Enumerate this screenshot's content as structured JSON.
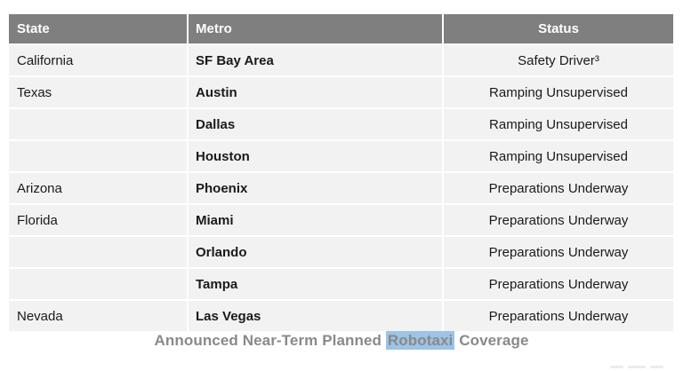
{
  "chart_data": {
    "type": "table",
    "title": "Announced Near-Term Planned Robotaxi Coverage",
    "columns": [
      "State",
      "Metro",
      "Status"
    ],
    "rows": [
      [
        "California",
        "SF Bay Area",
        "Safety Driver³"
      ],
      [
        "Texas",
        "Austin",
        "Ramping Unsupervised"
      ],
      [
        "",
        "Dallas",
        "Ramping Unsupervised"
      ],
      [
        "",
        "Houston",
        "Ramping Unsupervised"
      ],
      [
        "Arizona",
        "Phoenix",
        "Preparations Underway"
      ],
      [
        "Florida",
        "Miami",
        "Preparations Underway"
      ],
      [
        "",
        "Orlando",
        "Preparations Underway"
      ],
      [
        "",
        "Tampa",
        "Preparations Underway"
      ],
      [
        "Nevada",
        "Las Vegas",
        "Preparations Underway"
      ]
    ],
    "footnote_marker": "3",
    "layout": "header row gray, body rows banded light gray, State and Metro left-aligned, Status centered"
  },
  "caption": {
    "prefix": "Announced Near-Term Planned ",
    "highlight": "Robotaxi",
    "suffix": " Coverage"
  },
  "colors": {
    "header_bg": "#7f7f7f",
    "row_bg": "#f2f2f2",
    "body_text": "#1a1a1a",
    "caption_text": "#898989",
    "highlight_bg": "#9dc3e6"
  }
}
